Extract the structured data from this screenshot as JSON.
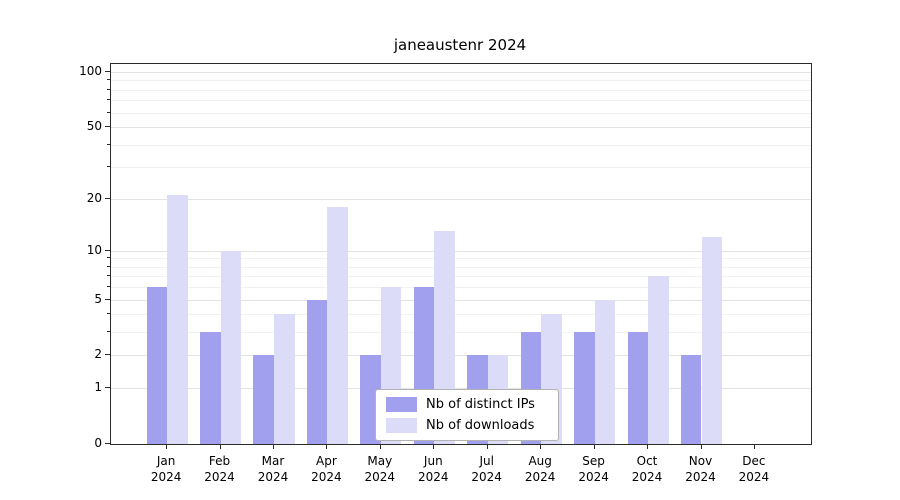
{
  "title": "janeaustenr 2024",
  "chart_data": {
    "type": "bar",
    "title": "janeaustenr 2024",
    "scale": "log1p",
    "grid": true,
    "legend_position": "lower center",
    "categories": [
      "Jan",
      "Feb",
      "Mar",
      "Apr",
      "May",
      "Jun",
      "Jul",
      "Aug",
      "Sep",
      "Oct",
      "Nov",
      "Dec"
    ],
    "x_year": "2024",
    "series": [
      {
        "name": "Nb of distinct IPs",
        "color": "#a0a0ef",
        "values": [
          6,
          3,
          2,
          5,
          2,
          6,
          2,
          3,
          3,
          3,
          2,
          0
        ]
      },
      {
        "name": "Nb of downloads",
        "color": "#dcdcf8",
        "values": [
          21,
          10,
          4,
          18,
          6,
          13,
          2,
          4,
          5,
          7,
          12,
          0
        ]
      }
    ],
    "y_ticks": [
      0,
      1,
      2,
      5,
      10,
      20,
      50,
      100
    ],
    "y_minor_ticks": [
      3,
      4,
      6,
      7,
      8,
      9,
      30,
      40,
      60,
      70,
      80,
      90
    ],
    "ylim": [
      0,
      100
    ],
    "xlabel": "",
    "ylabel": "",
    "colors": {
      "grid_major": "#e3e3e3",
      "grid_minor": "#f2f2f2",
      "spine": "#2b2b2b",
      "background": "#ffffff"
    }
  },
  "legend": {
    "items": [
      {
        "label": "Nb of distinct IPs"
      },
      {
        "label": "Nb of downloads"
      }
    ]
  }
}
